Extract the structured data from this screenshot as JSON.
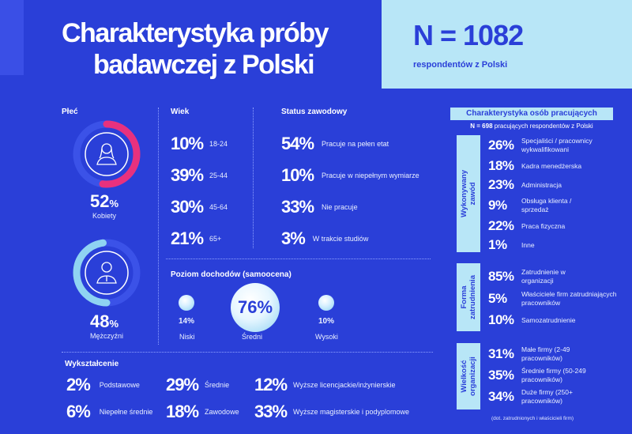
{
  "header": {
    "title_line1": "Charakterystyka próby",
    "title_line2": "badawczej z Polski",
    "n_value": "N = 1082",
    "n_sub": "respondentów z Polski"
  },
  "gender": {
    "heading": "Płeć",
    "women": {
      "value": "52",
      "unit": "%",
      "label": "Kobiety",
      "fraction": 0.52,
      "color": "#e8317e"
    },
    "men": {
      "value": "48",
      "unit": "%",
      "label": "Mężczyźni",
      "fraction": 0.48,
      "color": "#8fd3f2"
    }
  },
  "age": {
    "heading": "Wiek",
    "rows": [
      {
        "value": "10%",
        "label": "18-24"
      },
      {
        "value": "39%",
        "label": "25-44"
      },
      {
        "value": "30%",
        "label": "45-64"
      },
      {
        "value": "21%",
        "label": "65+"
      }
    ]
  },
  "status": {
    "heading": "Status zawodowy",
    "rows": [
      {
        "value": "54%",
        "label": "Pracuje na pełen etat"
      },
      {
        "value": "10%",
        "label": "Pracuje w niepełnym wymiarze"
      },
      {
        "value": "33%",
        "label": "Nie pracuje"
      },
      {
        "value": "3%",
        "label": "W trakcie studiów"
      }
    ]
  },
  "income": {
    "heading": "Poziom dochodów (samoocena)",
    "low": {
      "value": "14%",
      "label": "Niski"
    },
    "mid": {
      "value": "76%",
      "label": "Średni"
    },
    "high": {
      "value": "10%",
      "label": "Wysoki"
    }
  },
  "education": {
    "heading": "Wykształcenie",
    "items": [
      {
        "value": "2%",
        "label": "Podstawowe"
      },
      {
        "value": "29%",
        "label": "Średnie"
      },
      {
        "value": "12%",
        "label": "Wyższe licencjackie/inżynierskie"
      },
      {
        "value": "6%",
        "label": "Niepełne średnie"
      },
      {
        "value": "18%",
        "label": "Zawodowe"
      },
      {
        "value": "33%",
        "label": "Wyższe magisterskie i podyplomowe"
      }
    ]
  },
  "working": {
    "heading": "Charakterystyka osób pracujących",
    "sub_bold": "N = 698",
    "sub_rest": " pracujących respondentów z Polski",
    "occupation": {
      "label_line1": "Wykonywany",
      "label_line2": "zawód",
      "rows": [
        {
          "value": "26%",
          "label": "Specjaliści / pracownicy wykwalifikowani"
        },
        {
          "value": "18%",
          "label": "Kadra menedżerska"
        },
        {
          "value": "23%",
          "label": "Administracja"
        },
        {
          "value": "9%",
          "label": "Obsługa klienta / sprzedaż"
        },
        {
          "value": "22%",
          "label": "Praca fizyczna"
        },
        {
          "value": "1%",
          "label": "Inne"
        }
      ]
    },
    "employment": {
      "label_line1": "Forma",
      "label_line2": "zatrudnienia",
      "rows": [
        {
          "value": "85%",
          "label": "Zatrudnienie w organizacji"
        },
        {
          "value": "5%",
          "label": "Właściciele firm zatrudniających pracowników"
        },
        {
          "value": "10%",
          "label": "Samozatrudnienie"
        }
      ]
    },
    "size": {
      "label_line1": "Wielkość",
      "label_line2": "organizacji",
      "rows": [
        {
          "value": "31%",
          "label": "Małe firmy (2-49 pracowników)"
        },
        {
          "value": "35%",
          "label": "Średnie firmy (50-249 pracowników)"
        },
        {
          "value": "34%",
          "label": "Duże firmy (250+ pracowników)"
        }
      ],
      "note": "(dot. zatrudnionych i właścicieli firm)"
    }
  }
}
